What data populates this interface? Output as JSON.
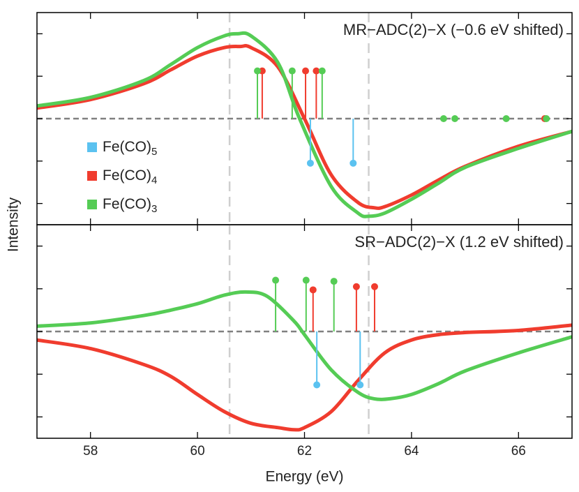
{
  "chart_data": [
    {
      "type": "line",
      "title": "MR−ADC(2)−X (−0.6 eV shifted)",
      "ylabel": "Intensity",
      "xlim": [
        57,
        67
      ],
      "xticks": [
        58,
        60,
        62,
        64,
        66
      ],
      "ylim": [
        -1,
        1
      ],
      "yticks": [
        -0.8,
        -0.4,
        0,
        0.4,
        0.8
      ],
      "vlines": [
        60.6,
        63.2
      ],
      "legend": "left",
      "series": [
        {
          "name": "Fe(CO)5",
          "color": "#5bc2f0",
          "stick_x": [
            62.11,
            62.91
          ],
          "stick_values": [
            -0.42,
            -0.42
          ]
        },
        {
          "name": "Fe(CO)4",
          "color": "#f03c2e",
          "x": [
            57,
            58,
            59,
            59.5,
            60,
            60.5,
            60.8,
            61,
            61.5,
            62,
            62.5,
            63,
            63.3,
            63.5,
            64,
            64.5,
            65,
            66,
            67
          ],
          "values": [
            0.1,
            0.18,
            0.33,
            0.46,
            0.59,
            0.67,
            0.68,
            0.67,
            0.49,
            0,
            -0.53,
            -0.79,
            -0.84,
            -0.83,
            -0.72,
            -0.58,
            -0.45,
            -0.26,
            -0.12
          ],
          "stick_x": [
            61.21,
            62.02,
            62.22,
            66.49
          ],
          "stick_values": [
            0.45,
            0.45,
            0.45,
            0
          ]
        },
        {
          "name": "Fe(CO)3",
          "color": "#55cc55",
          "x": [
            57,
            58,
            59,
            59.5,
            60,
            60.5,
            60.75,
            61,
            61.5,
            61.9,
            62.5,
            63,
            63.2,
            63.5,
            64,
            64.5,
            65,
            66,
            67
          ],
          "values": [
            0.12,
            0.2,
            0.36,
            0.51,
            0.67,
            0.78,
            0.8,
            0.78,
            0.53,
            0.01,
            -0.64,
            -0.89,
            -0.92,
            -0.89,
            -0.76,
            -0.61,
            -0.46,
            -0.28,
            -0.12
          ],
          "stick_x": [
            61.12,
            61.77,
            62.33,
            64.6,
            64.81,
            65.77,
            66.52
          ],
          "stick_values": [
            0.45,
            0.45,
            0.45,
            0,
            0,
            0,
            0
          ]
        }
      ]
    },
    {
      "type": "line",
      "title": "SR−ADC(2)−X (1.2 eV shifted)",
      "xlabel": "Energy (eV)",
      "xlim": [
        57,
        67
      ],
      "xticks": [
        58,
        60,
        62,
        64,
        66
      ],
      "ylim": [
        -1,
        1
      ],
      "yticks": [
        -0.8,
        -0.4,
        0,
        0.4,
        0.8
      ],
      "vlines": [
        60.6,
        63.2
      ],
      "series": [
        {
          "color": "#5bc2f0",
          "stick_x": [
            62.23,
            63.04
          ],
          "stick_values": [
            -0.5,
            -0.5
          ]
        },
        {
          "color": "#f03c2e",
          "x": [
            57,
            58,
            59,
            59.5,
            60,
            60.5,
            61,
            61.5,
            61.8,
            62,
            62.5,
            63,
            63.5,
            64,
            64.5,
            65,
            66,
            67
          ],
          "values": [
            -0.08,
            -0.16,
            -0.31,
            -0.42,
            -0.59,
            -0.75,
            -0.86,
            -0.9,
            -0.92,
            -0.9,
            -0.75,
            -0.46,
            -0.2,
            -0.08,
            -0.03,
            -0.01,
            0.01,
            0.06
          ],
          "stick_x": [
            62.16,
            62.97,
            63.31
          ],
          "stick_values": [
            0.39,
            0.42,
            0.42
          ]
        },
        {
          "color": "#55cc55",
          "x": [
            57,
            58,
            59,
            59.5,
            60,
            60.5,
            60.9,
            61.3,
            61.8,
            62,
            62.5,
            63,
            63.3,
            63.6,
            64,
            64.5,
            65,
            66,
            67
          ],
          "values": [
            0.05,
            0.08,
            0.15,
            0.2,
            0.26,
            0.34,
            0.37,
            0.33,
            0.1,
            -0.03,
            -0.36,
            -0.57,
            -0.63,
            -0.63,
            -0.59,
            -0.49,
            -0.37,
            -0.2,
            -0.05
          ],
          "stick_x": [
            61.46,
            62.03,
            62.55
          ],
          "stick_values": [
            0.48,
            0.48,
            0.47
          ]
        }
      ]
    }
  ]
}
